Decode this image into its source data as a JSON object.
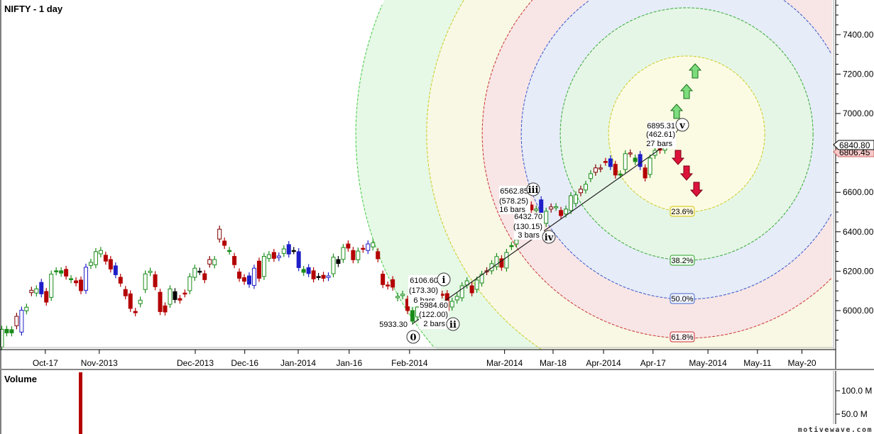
{
  "header": {
    "title": "NIFTY - 1 day"
  },
  "volume_panel": {
    "title": "Volume",
    "ticks": [
      "100.0 M",
      "50.0 M"
    ],
    "tick_values": [
      100,
      50
    ],
    "bar_value_m": 140
  },
  "watermark": "motivewave.com",
  "price_markers": {
    "last": "6840.80",
    "prev": "6806.45"
  },
  "colors": {
    "up": "#1a8c1a",
    "down": "#b40000",
    "blue": "#1e1ec8",
    "dark_red": "#800000",
    "black": "#000000",
    "up_arrow": "#7ddc7d",
    "down_arrow": "#dc143c"
  },
  "fib_labels": [
    "23.6%",
    "38.2%",
    "50.0%",
    "61.8%"
  ],
  "waves": [
    {
      "mark": "0",
      "lines": [
        "5933.30"
      ]
    },
    {
      "mark": "i",
      "lines": [
        "6106.60",
        "(173.30)",
        "6 bars"
      ]
    },
    {
      "mark": "ii",
      "lines": [
        "5984.60",
        "(122.00)",
        "2 bars"
      ]
    },
    {
      "mark": "iii",
      "lines": [
        "6562.85",
        "(578.25)",
        "16 bars"
      ]
    },
    {
      "mark": "iv",
      "lines": [
        "6432.70",
        "(130.15)",
        "3 bars"
      ]
    },
    {
      "mark": "v",
      "lines": [
        "6895.31",
        "(462.61)",
        "27 bars"
      ]
    }
  ],
  "chart_data": {
    "type": "candlestick",
    "title": "NIFTY - 1 day",
    "ylim": [
      5802,
      7576
    ],
    "y_ticks": [
      {
        "label": "7400.00",
        "value": 7400
      },
      {
        "label": "7200.00",
        "value": 7200
      },
      {
        "label": "7000.00",
        "value": 7000
      },
      {
        "label": "6600.00",
        "value": 6600
      },
      {
        "label": "6400.00",
        "value": 6400
      },
      {
        "label": "6200.00",
        "value": 6200
      },
      {
        "label": "6000.00",
        "value": 6000
      }
    ],
    "x_ticks": [
      {
        "label": "Oct-17",
        "bar": 9.8
      },
      {
        "label": "Nov-2013",
        "bar": 20.7
      },
      {
        "label": "Dec-2013",
        "bar": 40.1
      },
      {
        "label": "Dec-16",
        "bar": 50.1
      },
      {
        "label": "Jan-2014",
        "bar": 60.9
      },
      {
        "label": "Jan-16",
        "bar": 71.2
      },
      {
        "label": "Feb-2014",
        "bar": 83.4
      },
      {
        "label": "Mar-2014",
        "bar": 102.6
      },
      {
        "label": "Mar-18",
        "bar": 112.4
      },
      {
        "label": "Apr-2014",
        "bar": 122.6
      },
      {
        "label": "Apr-17",
        "bar": 132.6
      },
      {
        "label": "May-2014",
        "bar": 143.7
      },
      {
        "label": "May-11",
        "bar": 153.7
      },
      {
        "label": "May-20",
        "bar": 162.7
      }
    ],
    "fib_circle": {
      "center_bar": 139.4,
      "center_price": 6896,
      "levels": [
        0.236,
        0.382,
        0.5,
        0.618,
        0.786,
        1.0
      ]
    },
    "wave_points": [
      {
        "bar": 84,
        "price": 5933.3
      },
      {
        "bar": 134.5,
        "price": 6828
      }
    ],
    "candles_note": "each candle: [open, close, style] style u=up hollow green, g=green filled, r=red filled, R=red hollow, b=blue filled, B=blue hollow, k=black",
    "candles": [
      [
        5815,
        5905,
        "u"
      ],
      [
        5905,
        5887,
        "g"
      ],
      [
        5903,
        5887,
        "g"
      ],
      [
        5923,
        5971,
        "R"
      ],
      [
        5891,
        6002,
        "B"
      ],
      [
        5999,
        6017,
        "u"
      ],
      [
        6091,
        6103,
        "R"
      ],
      [
        6089,
        6110,
        "u"
      ],
      [
        6143,
        6085,
        "b"
      ],
      [
        6097,
        6043,
        "r"
      ],
      [
        6067,
        6185,
        "u"
      ],
      [
        6202,
        6197,
        "g"
      ],
      [
        6202,
        6190,
        "g"
      ],
      [
        6209,
        6175,
        "r"
      ],
      [
        6162,
        6157,
        "g"
      ],
      [
        6151,
        6141,
        "r"
      ],
      [
        6155,
        6101,
        "r"
      ],
      [
        6103,
        6220,
        "B"
      ],
      [
        6229,
        6245,
        "u"
      ],
      [
        6233,
        6299,
        "u"
      ],
      [
        6288,
        6305,
        "u"
      ],
      [
        6281,
        6251,
        "r"
      ],
      [
        6259,
        6211,
        "r"
      ],
      [
        6227,
        6182,
        "b"
      ],
      [
        6169,
        6139,
        "r"
      ],
      [
        6107,
        6075,
        "r"
      ],
      [
        6085,
        6011,
        "r"
      ],
      [
        5996,
        5989,
        "r"
      ],
      [
        6035,
        6053,
        "u"
      ],
      [
        6107,
        6186,
        "u"
      ],
      [
        6193,
        6200,
        "u"
      ],
      [
        6182,
        6121,
        "r"
      ],
      [
        6093,
        5995,
        "r"
      ],
      [
        6024,
        5993,
        "r"
      ],
      [
        6032,
        6110,
        "u"
      ],
      [
        6096,
        6056,
        "k"
      ],
      [
        6061,
        6053,
        "r"
      ],
      [
        6089,
        6085,
        "r"
      ],
      [
        6101,
        6172,
        "u"
      ],
      [
        6169,
        6215,
        "u"
      ],
      [
        6200,
        6199,
        "k"
      ],
      [
        6187,
        6157,
        "r"
      ],
      [
        6236,
        6259,
        "R"
      ],
      [
        6232,
        6259,
        "u"
      ],
      [
        6363,
        6413,
        "R"
      ],
      [
        6353,
        6331,
        "r"
      ],
      [
        6305,
        6302,
        "g"
      ],
      [
        6275,
        6233,
        "r"
      ],
      [
        6196,
        6164,
        "r"
      ],
      [
        6167,
        6149,
        "r"
      ],
      [
        6176,
        6134,
        "b"
      ],
      [
        6128,
        6215,
        "B"
      ],
      [
        6251,
        6164,
        "r"
      ],
      [
        6173,
        6275,
        "u"
      ],
      [
        6265,
        6284,
        "u"
      ],
      [
        6295,
        6265,
        "r"
      ],
      [
        6269,
        6277,
        "B"
      ],
      [
        6290,
        6313,
        "u"
      ],
      [
        6335,
        6287,
        "b"
      ],
      [
        6305,
        6304,
        "k"
      ],
      [
        6299,
        6218,
        "b"
      ],
      [
        6209,
        6194,
        "g"
      ],
      [
        6218,
        6188,
        "b"
      ],
      [
        6202,
        6161,
        "r"
      ],
      [
        6173,
        6172,
        "k"
      ],
      [
        6179,
        6164,
        "r"
      ],
      [
        6168,
        6176,
        "B"
      ],
      [
        6187,
        6271,
        "u"
      ],
      [
        6259,
        6239,
        "k"
      ],
      [
        6260,
        6320,
        "u"
      ],
      [
        6338,
        6317,
        "r"
      ],
      [
        6305,
        6258,
        "r"
      ],
      [
        6258,
        6302,
        "u"
      ],
      [
        6316,
        6311,
        "r"
      ],
      [
        6305,
        6338,
        "B"
      ],
      [
        6323,
        6344,
        "u"
      ],
      [
        6299,
        6263,
        "r"
      ],
      [
        6185,
        6132,
        "r"
      ],
      [
        6130,
        6125,
        "r"
      ],
      [
        6157,
        6119,
        "r"
      ],
      [
        6065,
        6072,
        "u"
      ],
      [
        6076,
        6083,
        "u"
      ],
      [
        6058,
        6000,
        "r"
      ],
      [
        6000,
        5946,
        "g"
      ],
      [
        5968,
        6018,
        "u"
      ],
      [
        6010,
        6040,
        "u"
      ],
      [
        6045,
        6030,
        "r"
      ],
      [
        6030,
        6050,
        "u"
      ],
      [
        6072,
        6061,
        "k"
      ],
      [
        6083,
        6080,
        "r"
      ],
      [
        6086,
        6000,
        "r"
      ],
      [
        6018,
        6047,
        "u"
      ],
      [
        6054,
        6072,
        "u"
      ],
      [
        6065,
        6126,
        "u"
      ],
      [
        6130,
        6151,
        "u"
      ],
      [
        6126,
        6090,
        "r"
      ],
      [
        6108,
        6155,
        "u"
      ],
      [
        6140,
        6184,
        "u"
      ],
      [
        6198,
        6202,
        "R"
      ],
      [
        6202,
        6238,
        "u"
      ],
      [
        6223,
        6274,
        "u"
      ],
      [
        6263,
        6220,
        "r"
      ],
      [
        6216,
        6295,
        "u"
      ],
      [
        6330,
        6325,
        "g"
      ],
      [
        6338,
        6360,
        "u"
      ],
      [
        6400,
        6440,
        "u"
      ],
      [
        6533,
        6562,
        "u"
      ],
      [
        6536,
        6511,
        "r"
      ],
      [
        6508,
        6515,
        "u"
      ],
      [
        6562,
        6486,
        "b"
      ],
      [
        6443,
        6504,
        "u"
      ],
      [
        6515,
        6526,
        "R"
      ],
      [
        6524,
        6527,
        "u"
      ],
      [
        6508,
        6482,
        "r"
      ],
      [
        6490,
        6515,
        "u"
      ],
      [
        6508,
        6583,
        "u"
      ],
      [
        6544,
        6587,
        "u"
      ],
      [
        6598,
        6616,
        "R"
      ],
      [
        6612,
        6641,
        "u"
      ],
      [
        6670,
        6695,
        "u"
      ],
      [
        6702,
        6724,
        "R"
      ],
      [
        6720,
        6724,
        "R"
      ],
      [
        6757,
        6753,
        "r"
      ],
      [
        6770,
        6731,
        "b"
      ],
      [
        6742,
        6688,
        "r"
      ],
      [
        6693,
        6690,
        "g"
      ],
      [
        6716,
        6796,
        "u"
      ],
      [
        6796,
        6800,
        "R"
      ],
      [
        6774,
        6756,
        "g"
      ],
      [
        6792,
        6731,
        "b"
      ],
      [
        6724,
        6673,
        "r"
      ],
      [
        6691,
        6774,
        "u"
      ],
      [
        6788,
        6813,
        "u"
      ],
      [
        6821,
        6814,
        "r"
      ],
      [
        6814,
        6828,
        "u"
      ]
    ]
  }
}
